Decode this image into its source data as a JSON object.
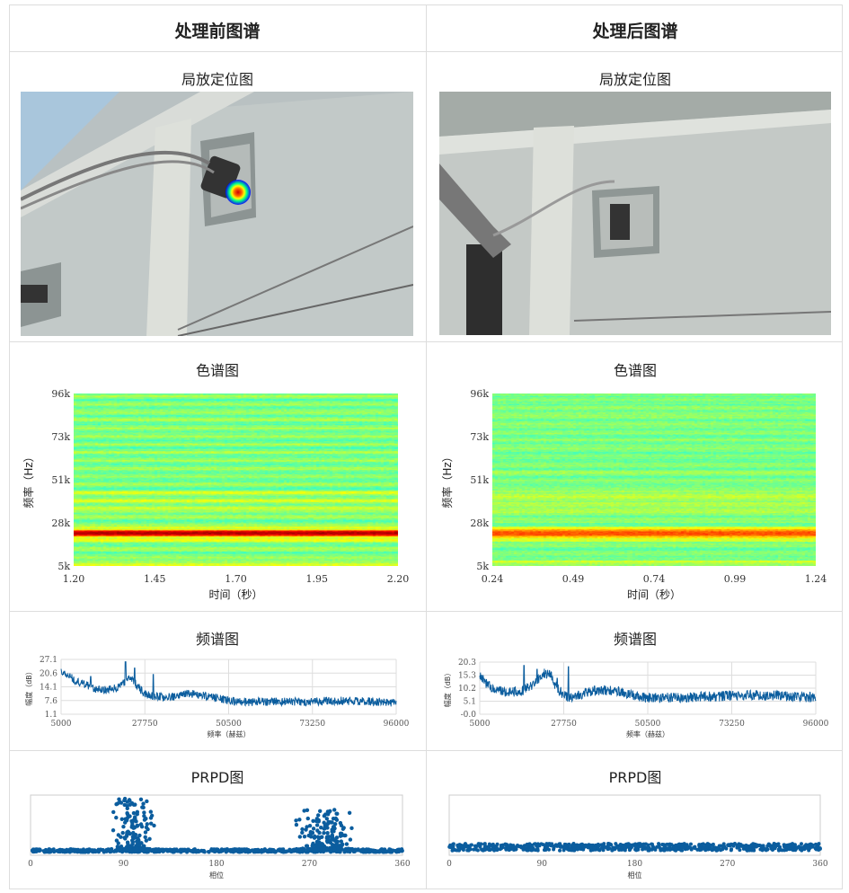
{
  "columns": [
    {
      "header": "处理前图谱"
    },
    {
      "header": "处理后图谱"
    }
  ],
  "sections": {
    "localization": "局放定位图",
    "spectrogram": "色谱图",
    "spectrum": "频谱图",
    "prpd": "PRPD图"
  },
  "colors": {
    "line": "#0b5d9e",
    "grid": "#dddddd",
    "border": "#dddddd",
    "hotspot": "#ff0000"
  },
  "chart_data": [
    {
      "type": "heatmap",
      "panel": "before",
      "title": "色谱图",
      "xlabel": "时间（秒）",
      "ylabel": "频率（Hz）",
      "xticks": [
        "1.20",
        "1.45",
        "1.70",
        "1.95",
        "2.20"
      ],
      "yticks": [
        "96k",
        "73k",
        "51k",
        "28k",
        "5k"
      ],
      "xlim": [
        1.2,
        2.2
      ],
      "ylim": [
        5000,
        96000
      ],
      "colormap": "jet",
      "hot_band_hz": [
        21000,
        24000
      ]
    },
    {
      "type": "heatmap",
      "panel": "after",
      "title": "色谱图",
      "xlabel": "时间（秒）",
      "ylabel": "频率（Hz）",
      "xticks": [
        "0.24",
        "0.49",
        "0.74",
        "0.99",
        "1.24"
      ],
      "yticks": [
        "96k",
        "73k",
        "51k",
        "28k",
        "5k"
      ],
      "xlim": [
        0.24,
        1.24
      ],
      "ylim": [
        5000,
        96000
      ],
      "colormap": "jet",
      "hot_band_hz": [
        21000,
        24000
      ]
    },
    {
      "type": "line",
      "panel": "before",
      "title": "频谱图",
      "xlabel": "频率（赫兹）",
      "ylabel": "幅度（dB）",
      "xticks": [
        "5000",
        "27750",
        "50500",
        "73250",
        "96000"
      ],
      "yticks": [
        "27.1",
        "20.6",
        "14.1",
        "7.6",
        "1.1"
      ],
      "xlim": [
        5000,
        96000
      ],
      "ylim": [
        1.1,
        27.1
      ],
      "grid": true,
      "x": [
        5000,
        9000,
        14000,
        17000,
        20000,
        22000,
        23500,
        25000,
        27000,
        29000,
        32000,
        36000,
        40000,
        44000,
        48000,
        52000,
        60000,
        70000,
        80000,
        90000,
        96000
      ],
      "values": [
        21.5,
        17,
        13.5,
        12.5,
        13.5,
        16,
        18.5,
        16,
        12,
        10,
        9.5,
        9.5,
        11,
        10,
        8.5,
        7,
        7,
        7,
        7.5,
        7,
        6.5
      ],
      "peaks": [
        {
          "x": 13000,
          "y": 19
        },
        {
          "x": 22500,
          "y": 26
        },
        {
          "x": 25000,
          "y": 23
        },
        {
          "x": 30000,
          "y": 20
        }
      ]
    },
    {
      "type": "line",
      "panel": "after",
      "title": "频谱图",
      "xlabel": "频率（赫兹）",
      "ylabel": "幅度（dB）",
      "xticks": [
        "5000",
        "27750",
        "50500",
        "73250",
        "96000"
      ],
      "yticks": [
        "20.3",
        "15.3",
        "10.2",
        "5.1",
        "-0.0"
      ],
      "xlim": [
        5000,
        96000
      ],
      "ylim": [
        0,
        20.3
      ],
      "grid": true,
      "x": [
        5000,
        6000,
        9000,
        13000,
        17000,
        20000,
        22000,
        24000,
        26000,
        28000,
        30000,
        34000,
        38000,
        42000,
        46000,
        50000,
        60000,
        70000,
        80000,
        90000,
        96000
      ],
      "values": [
        16,
        13,
        9.5,
        8.5,
        9.5,
        12,
        16,
        15.5,
        10,
        7,
        6.5,
        8.5,
        9.5,
        9,
        7.5,
        6.5,
        6.5,
        7,
        7.5,
        7,
        6.5
      ],
      "peaks": [
        {
          "x": 17000,
          "y": 19
        },
        {
          "x": 20500,
          "y": 17.5
        },
        {
          "x": 26000,
          "y": 14
        },
        {
          "x": 29000,
          "y": 18.5
        }
      ]
    },
    {
      "type": "scatter",
      "panel": "before",
      "title": "PRPD图",
      "xlabel": "相位",
      "xticks": [
        "0",
        "90",
        "180",
        "270",
        "360"
      ],
      "xlim": [
        0,
        360
      ],
      "clusters": [
        {
          "phase_center": 100,
          "phase_spread": 12,
          "max_amplitude": 1.0
        },
        {
          "phase_center": 285,
          "phase_spread": 18,
          "max_amplitude": 0.8
        }
      ],
      "baseline_amplitude": 0.1
    },
    {
      "type": "scatter",
      "panel": "after",
      "title": "PRPD图",
      "xlabel": "相位",
      "xticks": [
        "0",
        "90",
        "180",
        "270",
        "360"
      ],
      "xlim": [
        0,
        360
      ],
      "clusters": [],
      "baseline_amplitude": 0.15
    }
  ]
}
